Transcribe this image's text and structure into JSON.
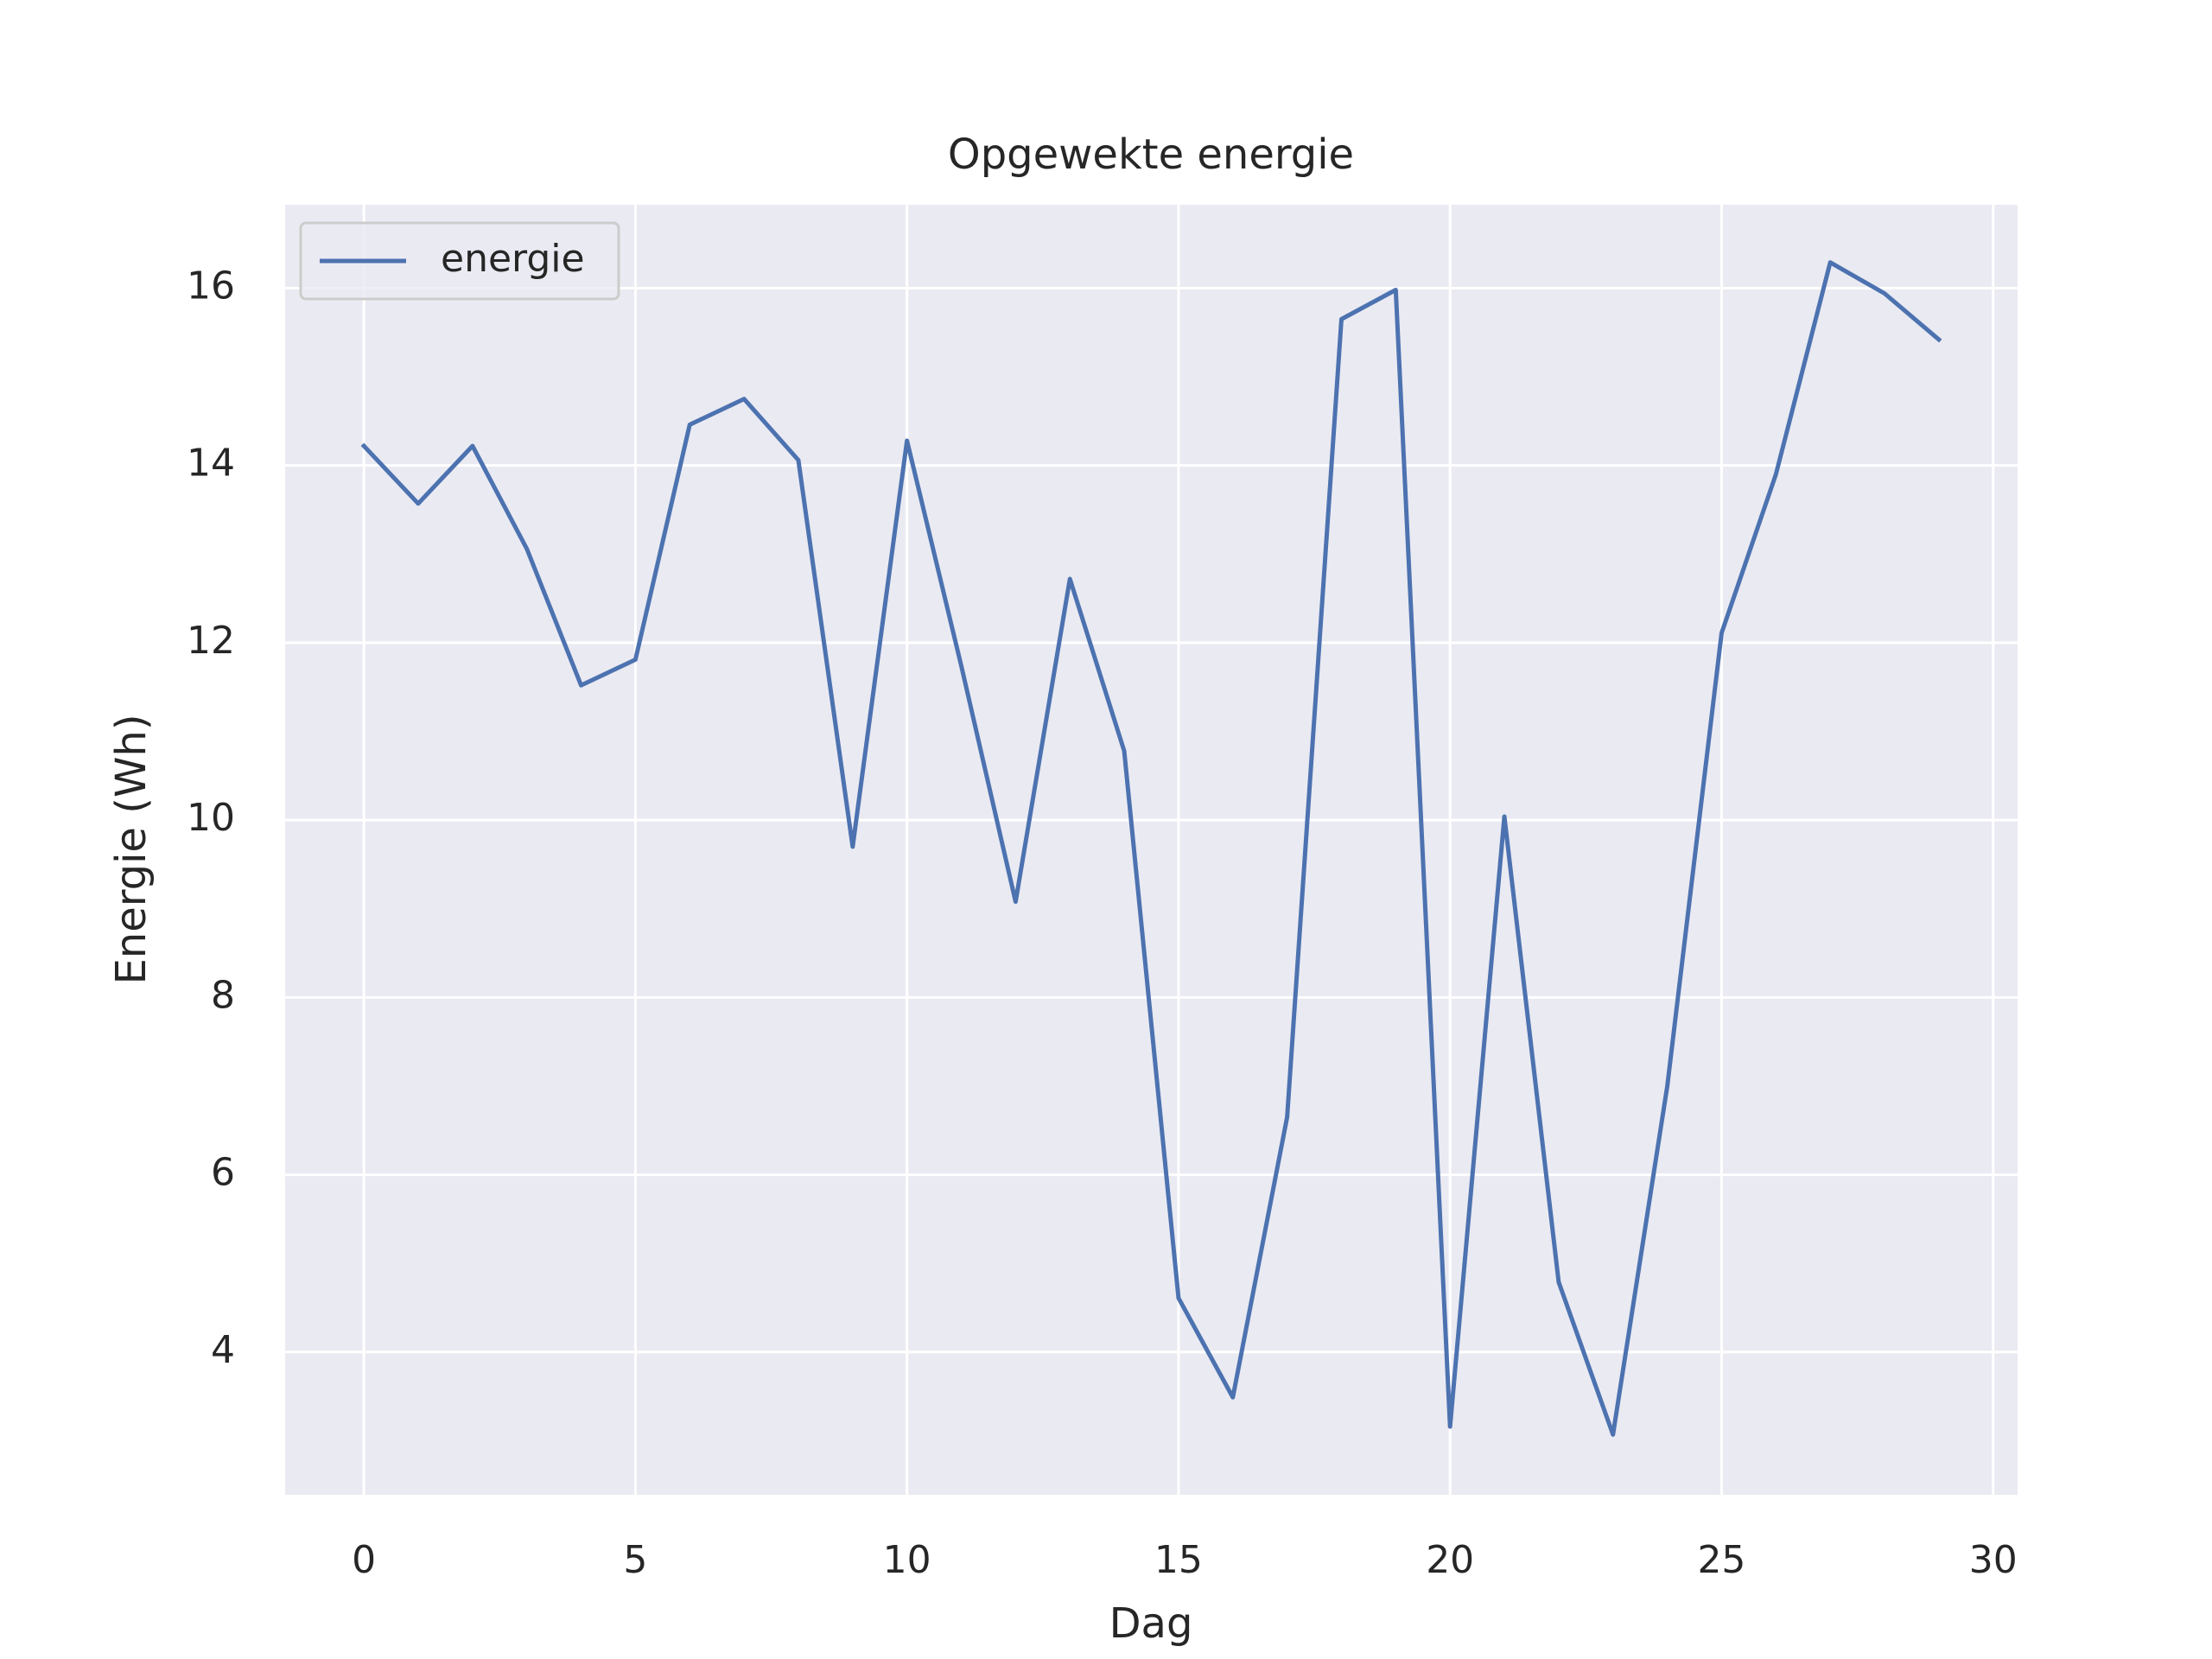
{
  "chart_data": {
    "type": "line",
    "title": "Opgewekte energie",
    "xlabel": "Dag",
    "ylabel": "Energie (Wh)",
    "x": [
      0,
      1,
      2,
      3,
      4,
      5,
      6,
      7,
      8,
      9,
      10,
      11,
      12,
      13,
      14,
      15,
      16,
      17,
      18,
      19,
      20,
      21,
      22,
      23,
      24,
      25,
      26,
      27,
      28,
      29
    ],
    "series": [
      {
        "name": "energie",
        "color": "#4c72b0",
        "values": [
          14.22,
          13.57,
          14.22,
          13.06,
          11.52,
          11.81,
          14.46,
          14.75,
          14.06,
          9.7,
          14.28,
          11.74,
          9.08,
          12.72,
          10.78,
          4.61,
          3.49,
          6.65,
          15.65,
          15.98,
          3.16,
          10.04,
          4.79,
          3.07,
          7.0,
          12.11,
          13.9,
          16.29,
          15.94,
          15.42
        ]
      }
    ],
    "xlim": [
      -1.45,
      30.45
    ],
    "ylim": [
      2.39,
      16.94
    ],
    "xticks": [
      0,
      5,
      10,
      15,
      20,
      25,
      30
    ],
    "yticks": [
      4,
      6,
      8,
      10,
      12,
      14,
      16
    ],
    "grid": true,
    "legend": "upper left"
  }
}
